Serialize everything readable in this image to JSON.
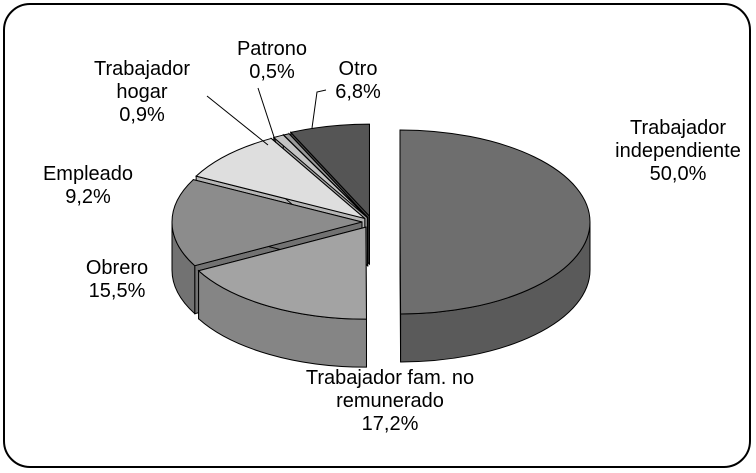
{
  "chart_data": {
    "type": "pie3d",
    "categories": [
      "Trabajador independiente",
      "Trabajador fam. no remunerado",
      "Obrero",
      "Empleado",
      "Trabajador hogar",
      "Patrono",
      "Otro"
    ],
    "values": [
      50.0,
      17.2,
      15.5,
      9.2,
      0.9,
      0.5,
      6.8
    ],
    "value_labels": [
      "50,0%",
      "17,2%",
      "15,5%",
      "9,2%",
      "0,9%",
      "0,5%",
      "6,8%"
    ],
    "colors": [
      "#6e6e6e",
      "#a3a3a3",
      "#8c8c8c",
      "#dedede",
      "#c4c4c4",
      "#999999",
      "#555555"
    ]
  }
}
